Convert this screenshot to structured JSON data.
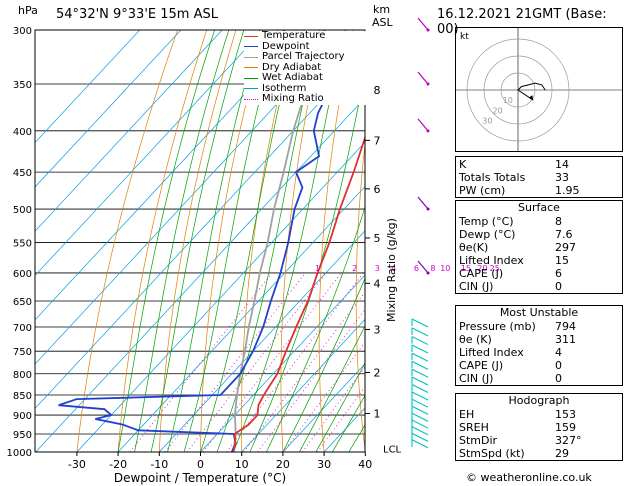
{
  "header": {
    "p_unit": "hPa",
    "location": "54°32'N  9°33'E  15m  ASL",
    "km_label": "km",
    "asl_label": "ASL",
    "datetime": "16.12.2021  21GMT  (Base: 00)"
  },
  "legend": [
    "Temperature",
    "Dewpoint",
    "Parcel Trajectory",
    "Dry Adiabat",
    "Wet Adiabat",
    "Isotherm",
    "Mixing Ratio"
  ],
  "colors": {
    "temperature": "#e03030",
    "dewpoint": "#2040d0",
    "parcel": "#a0a0a0",
    "dry_adiabat": "#e08000",
    "wet_adiabat": "#00a000",
    "isotherm": "#00a0e0",
    "mixing_ratio": "#d000d0",
    "wind": "#00c0c0"
  },
  "chart_data": {
    "type": "line",
    "xlabel": "Dewpoint / Temperature (°C)",
    "ylabel": "Mixing Ratio (g/kg)",
    "x_ticks": [
      "-30",
      "-20",
      "-10",
      "0",
      "10",
      "20",
      "30",
      "40"
    ],
    "p_levels": [
      "300",
      "350",
      "400",
      "450",
      "500",
      "550",
      "600",
      "650",
      "700",
      "750",
      "800",
      "850",
      "900",
      "950",
      "1000"
    ],
    "km_ticks": [
      {
        "label": "8",
        "p": 356
      },
      {
        "label": "7",
        "p": 411
      },
      {
        "label": "6",
        "p": 472
      },
      {
        "label": "5",
        "p": 543
      },
      {
        "label": "4",
        "p": 618
      },
      {
        "label": "3",
        "p": 705
      },
      {
        "label": "2",
        "p": 797
      },
      {
        "label": "1",
        "p": 896
      }
    ],
    "lcl_label": "LCL",
    "mixing_ratio_labels": [
      {
        "label": "1",
        "p": 600,
        "t": -12
      },
      {
        "label": "2",
        "p": 600,
        "t": -3
      },
      {
        "label": "3",
        "p": 600,
        "t": 2.5
      },
      {
        "label": "4",
        "p": 600,
        "t": 6.5
      },
      {
        "label": "6",
        "p": 600,
        "t": 12
      },
      {
        "label": "8",
        "p": 600,
        "t": 16
      },
      {
        "label": "10",
        "p": 600,
        "t": 19
      },
      {
        "label": "15",
        "p": 600,
        "t": 24
      },
      {
        "label": "20",
        "p": 600,
        "t": 28
      },
      {
        "label": "25",
        "p": 600,
        "t": 31
      }
    ],
    "temperature": [
      [
        1000,
        8
      ],
      [
        975,
        6.5
      ],
      [
        950,
        4.2
      ],
      [
        925,
        5.5
      ],
      [
        900,
        5.5
      ],
      [
        875,
        3.5
      ],
      [
        850,
        2.5
      ],
      [
        800,
        1
      ],
      [
        750,
        -2
      ],
      [
        700,
        -5
      ],
      [
        650,
        -8
      ],
      [
        600,
        -12
      ],
      [
        550,
        -16
      ],
      [
        500,
        -21
      ],
      [
        450,
        -26
      ],
      [
        400,
        -32
      ],
      [
        350,
        -38
      ],
      [
        300,
        -45
      ]
    ],
    "dewpoint": [
      [
        1000,
        7.6
      ],
      [
        975,
        6.5
      ],
      [
        950,
        4
      ],
      [
        940,
        -20
      ],
      [
        925,
        -25
      ],
      [
        910,
        -33
      ],
      [
        900,
        -30
      ],
      [
        885,
        -33
      ],
      [
        875,
        -45
      ],
      [
        860,
        -42
      ],
      [
        850,
        -8
      ],
      [
        800,
        -8
      ],
      [
        750,
        -10
      ],
      [
        700,
        -13
      ],
      [
        650,
        -17
      ],
      [
        600,
        -21
      ],
      [
        550,
        -26
      ],
      [
        500,
        -32
      ],
      [
        470,
        -35
      ],
      [
        450,
        -40
      ],
      [
        430,
        -38
      ],
      [
        400,
        -45
      ],
      [
        380,
        -48
      ],
      [
        360,
        -50
      ],
      [
        350,
        -57
      ],
      [
        330,
        -70
      ],
      [
        300,
        -75
      ]
    ],
    "parcel": [
      [
        1000,
        8
      ],
      [
        950,
        4.5
      ],
      [
        900,
        0
      ],
      [
        850,
        -4
      ],
      [
        800,
        -8
      ],
      [
        750,
        -12
      ],
      [
        700,
        -16.5
      ],
      [
        650,
        -21
      ],
      [
        600,
        -26
      ],
      [
        550,
        -31
      ],
      [
        500,
        -37
      ],
      [
        450,
        -43
      ],
      [
        400,
        -50
      ],
      [
        350,
        -57
      ],
      [
        300,
        -65
      ]
    ]
  },
  "hodograph": {
    "label": "kt",
    "rings": [
      {
        "kt": 10,
        "label": "10"
      },
      {
        "kt": 20,
        "label": "20"
      },
      {
        "kt": 30,
        "label": "30"
      }
    ],
    "trace": [
      [
        0,
        0
      ],
      [
        2,
        -2
      ],
      [
        6,
        -3
      ],
      [
        10,
        -4
      ],
      [
        14,
        -3
      ],
      [
        16,
        0
      ]
    ],
    "storm": [
      9,
      -6
    ]
  },
  "indices": [
    {
      "label": "K",
      "value": "14"
    },
    {
      "label": "Totals Totals",
      "value": "33"
    },
    {
      "label": "PW (cm)",
      "value": "1.95"
    }
  ],
  "surface": {
    "title": "Surface",
    "rows": [
      {
        "label": "Temp (°C)",
        "value": "8"
      },
      {
        "label": "Dewp (°C)",
        "value": "7.6"
      },
      {
        "label": "θe(K)",
        "value": "297"
      },
      {
        "label": "Lifted Index",
        "value": "15"
      },
      {
        "label": "CAPE (J)",
        "value": "6"
      },
      {
        "label": "CIN (J)",
        "value": "0"
      }
    ]
  },
  "most_unstable": {
    "title": "Most Unstable",
    "rows": [
      {
        "label": "Pressure (mb)",
        "value": "794"
      },
      {
        "label": "θe (K)",
        "value": "311"
      },
      {
        "label": "Lifted Index",
        "value": "4"
      },
      {
        "label": "CAPE (J)",
        "value": "0"
      },
      {
        "label": "CIN (J)",
        "value": "0"
      }
    ]
  },
  "hodograph_stats": {
    "title": "Hodograph",
    "rows": [
      {
        "label": "EH",
        "value": "153"
      },
      {
        "label": "SREH",
        "value": "159"
      },
      {
        "label": "StmDir",
        "value": "327°"
      },
      {
        "label": "StmSpd (kt)",
        "value": "29"
      }
    ]
  },
  "copyright": "© weatheronline.co.uk"
}
